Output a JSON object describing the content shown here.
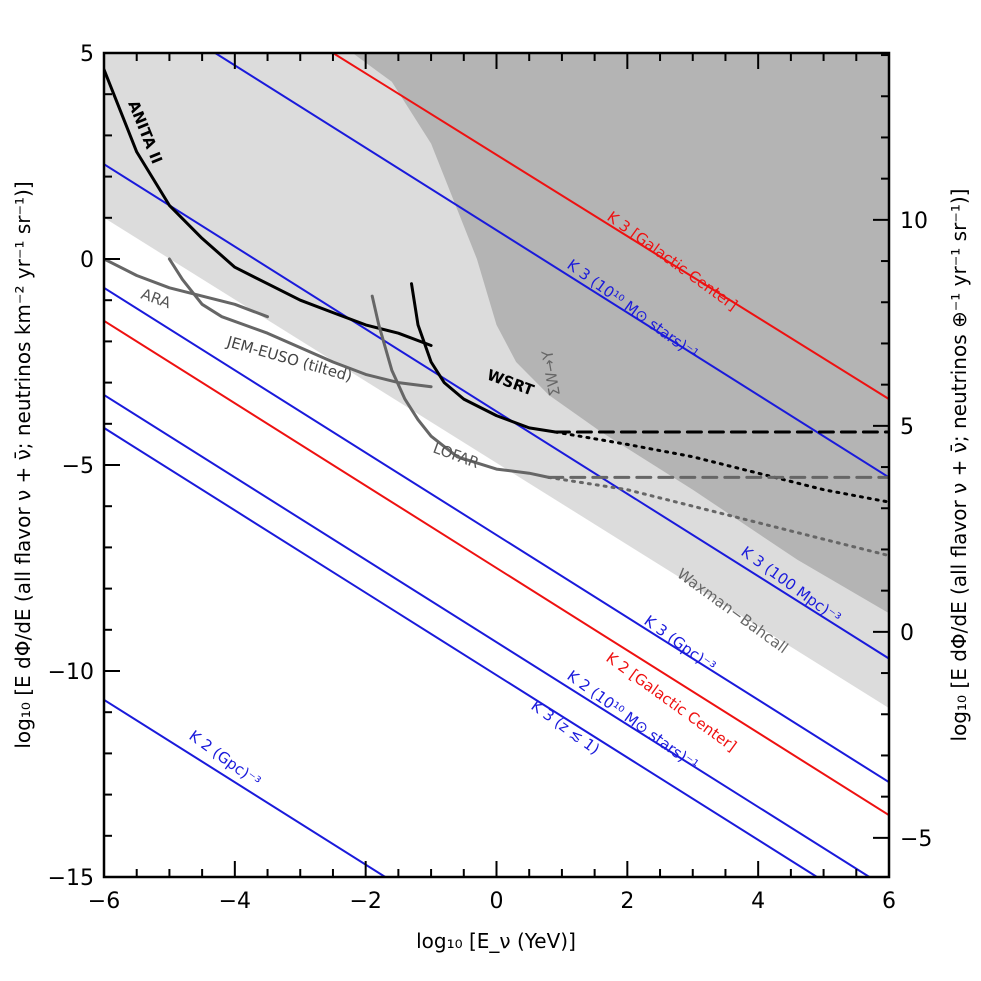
{
  "chart_data": {
    "type": "line",
    "xlabel": "log₁₀ [E_ν (YeV)]",
    "ylabel_left": "log₁₀ [E dΦ/dE (all flavor ν + ν̄; neutrinos km⁻² yr⁻¹ sr⁻¹)]",
    "ylabel_right": "log₁₀ [E dΦ/dE (all flavor ν + ν̄; neutrinos ⊕⁻¹ yr⁻¹ sr⁻¹)]",
    "xlim": [
      -6,
      6
    ],
    "ylim": [
      -15,
      5
    ],
    "ylim_right": [
      -5.95,
      14.05
    ],
    "x_ticks": [
      "−6",
      "−4",
      "−2",
      "0",
      "2",
      "4",
      "6"
    ],
    "y_ticks_left": [
      "−15",
      "−10",
      "−5",
      "0",
      "5"
    ],
    "y_ticks_right": [
      "−5",
      "0",
      "5",
      "10"
    ],
    "grid": false,
    "colors": {
      "red": "#ee1111",
      "blue": "#1a1adb",
      "black": "#000000",
      "gray": "#666666",
      "light_region": "#dcdcdc",
      "dark_region": "#b4b4b4"
    },
    "regions": [
      {
        "name": "light-shaded-region",
        "color": "#dcdcdc",
        "upper": [
          [
            -6,
            5
          ],
          [
            6,
            5
          ]
        ],
        "lower": [
          [
            -6,
            1.0
          ],
          [
            6,
            -10.9
          ]
        ]
      },
      {
        "name": "dark-shaded-region",
        "color": "#b4b4b4",
        "label": "ΣW→Y",
        "label_color": "#666666",
        "boundary": [
          [
            -4.2,
            5
          ],
          [
            -2.2,
            5
          ],
          [
            -1.6,
            4.3
          ],
          [
            -1.0,
            2.8
          ],
          [
            -0.6,
            1.2
          ],
          [
            -0.3,
            0.0
          ],
          [
            0.0,
            -1.6
          ],
          [
            0.3,
            -2.5
          ],
          [
            0.8,
            -3.3
          ],
          [
            1.6,
            -4.2
          ],
          [
            3.0,
            -5.6
          ],
          [
            4.6,
            -7.3
          ],
          [
            6,
            -8.6
          ]
        ]
      }
    ],
    "series": [
      {
        "name": "K 3 [Galactic Center]",
        "color": "#ee1111",
        "points": [
          [
            -2.5,
            5
          ],
          [
            6,
            -3.4
          ]
        ]
      },
      {
        "name": "K 3 (10¹⁰ M⊙ stars)⁻¹",
        "color": "#1a1adb",
        "points": [
          [
            -4.3,
            5
          ],
          [
            6,
            -5.3
          ]
        ]
      },
      {
        "name": "K 3 (100 Mpc)⁻³",
        "color": "#1a1adb",
        "points": [
          [
            -6,
            2.3
          ],
          [
            6,
            -9.7
          ]
        ]
      },
      {
        "name": "K 3 (Gpc)⁻³",
        "color": "#1a1adb",
        "points": [
          [
            -6,
            -0.7
          ],
          [
            6,
            -12.7
          ]
        ]
      },
      {
        "name": "K 2 [Galactic Center]",
        "color": "#ee1111",
        "points": [
          [
            -6,
            -1.5
          ],
          [
            6,
            -13.5
          ]
        ]
      },
      {
        "name": "K 2 (10¹⁰ M⊙ stars)⁻¹",
        "color": "#1a1adb",
        "points": [
          [
            -6,
            -3.3
          ],
          [
            5.7,
            -15
          ]
        ]
      },
      {
        "name": "K 3 (z ≲ 1)",
        "color": "#1a1adb",
        "points": [
          [
            -6,
            -4.1
          ],
          [
            4.9,
            -15
          ]
        ]
      },
      {
        "name": "K 2 (Gpc)⁻³",
        "color": "#1a1adb",
        "points": [
          [
            -6,
            -10.7
          ],
          [
            -1.7,
            -15
          ]
        ]
      },
      {
        "name": "ANITA II",
        "color": "#000000",
        "points": [
          [
            -6,
            4.6
          ],
          [
            -5.5,
            2.6
          ],
          [
            -5.0,
            1.3
          ],
          [
            -4.5,
            0.5
          ],
          [
            -4.0,
            -0.2
          ],
          [
            -3.5,
            -0.6
          ],
          [
            -3.0,
            -1.0
          ],
          [
            -2.5,
            -1.3
          ],
          [
            -2.0,
            -1.6
          ],
          [
            -1.5,
            -1.8
          ],
          [
            -1.0,
            -2.1
          ]
        ]
      },
      {
        "name": "WSRT",
        "color": "#000000",
        "points": [
          [
            -1.3,
            -0.6
          ],
          [
            -1.2,
            -1.6
          ],
          [
            -1.0,
            -2.5
          ],
          [
            -0.8,
            -3.0
          ],
          [
            -0.5,
            -3.4
          ],
          [
            0.0,
            -3.8
          ],
          [
            0.5,
            -4.1
          ],
          [
            0.9,
            -4.2
          ]
        ],
        "extension_dashed": [
          [
            0.9,
            -4.2
          ],
          [
            6,
            -4.2
          ]
        ],
        "extension_dotted": [
          [
            0.9,
            -4.2
          ],
          [
            2.0,
            -4.5
          ],
          [
            3.0,
            -4.8
          ],
          [
            4.0,
            -5.2
          ],
          [
            5.0,
            -5.6
          ],
          [
            6.0,
            -5.9
          ]
        ]
      },
      {
        "name": "LOFAR",
        "color": "#666666",
        "points": [
          [
            -1.9,
            -0.9
          ],
          [
            -1.8,
            -1.6
          ],
          [
            -1.6,
            -2.7
          ],
          [
            -1.4,
            -3.4
          ],
          [
            -1.2,
            -3.9
          ],
          [
            -1.0,
            -4.3
          ],
          [
            -0.6,
            -4.8
          ],
          [
            0.0,
            -5.1
          ],
          [
            0.5,
            -5.2
          ],
          [
            0.8,
            -5.3
          ]
        ],
        "extension_dashed": [
          [
            0.8,
            -5.3
          ],
          [
            6,
            -5.3
          ]
        ],
        "extension_dotted": [
          [
            0.8,
            -5.3
          ],
          [
            2.0,
            -5.6
          ],
          [
            3.0,
            -6.0
          ],
          [
            4.0,
            -6.4
          ],
          [
            5.0,
            -6.8
          ],
          [
            6.0,
            -7.2
          ]
        ]
      },
      {
        "name": "ARA",
        "color": "#666666",
        "points": [
          [
            -6,
            0.0
          ],
          [
            -5.5,
            -0.4
          ],
          [
            -5.0,
            -0.7
          ],
          [
            -4.5,
            -0.9
          ],
          [
            -4.0,
            -1.1
          ],
          [
            -3.5,
            -1.4
          ]
        ]
      },
      {
        "name": "JEM-EUSO (tilted)",
        "color": "#666666",
        "points": [
          [
            -5.0,
            0.0
          ],
          [
            -4.8,
            -0.5
          ],
          [
            -4.5,
            -1.1
          ],
          [
            -4.2,
            -1.4
          ],
          [
            -3.5,
            -1.8
          ],
          [
            -2.5,
            -2.5
          ],
          [
            -2.0,
            -2.8
          ],
          [
            -1.5,
            -3.0
          ],
          [
            -1.0,
            -3.1
          ]
        ]
      },
      {
        "name": "Waxman–Bahcall",
        "color": "#666666"
      }
    ],
    "labels": {
      "anita": "ANITA II",
      "wsrt": "WSRT",
      "lofar": "LOFAR",
      "ara": "ARA",
      "jem": "JEM-EUSO (tilted)",
      "wb": "Waxman−Bahcall",
      "sumw": "ΣW→Y",
      "k3gc": "K 3 [Galactic Center]",
      "k3stars": "K 3 (10¹⁰ M⊙ stars)⁻¹",
      "k3mpc": "K 3 (100 Mpc)⁻³",
      "k3gpc": "K 3 (Gpc)⁻³",
      "k2gc": "K 2 [Galactic Center]",
      "k2stars": "K 2 (10¹⁰ M⊙ stars)⁻¹",
      "k3z": "K 3 (z ≲ 1)",
      "k2gpc": "K 2 (Gpc)⁻³"
    }
  }
}
